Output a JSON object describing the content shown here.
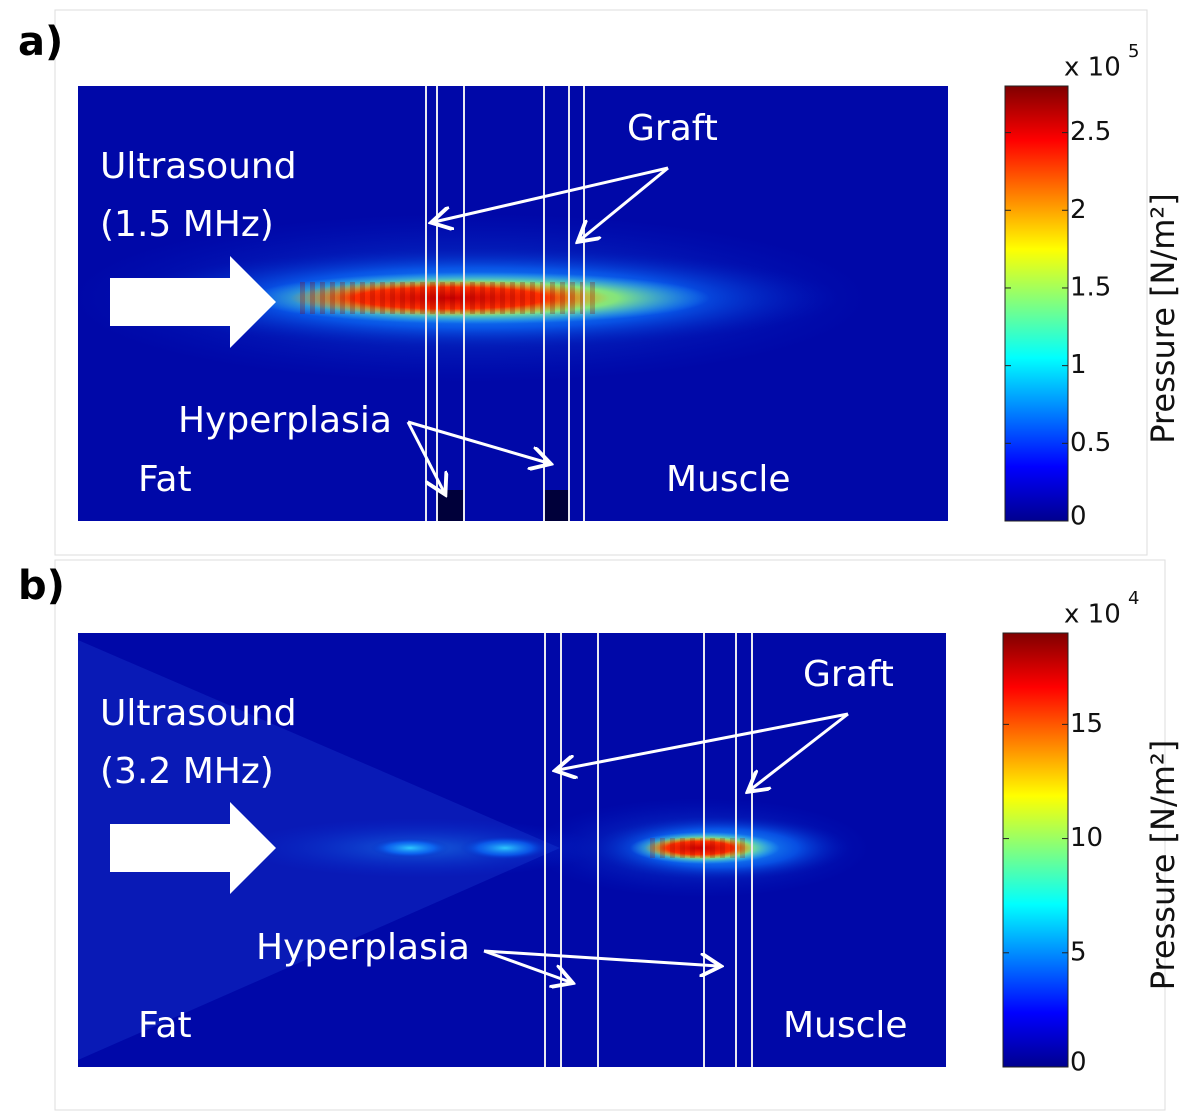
{
  "panels": [
    {
      "label": "a)",
      "annotations": {
        "source": "Ultrasound",
        "frequency": "(1.5 MHz)",
        "graft": "Graft",
        "hyperplasia": "Hyperplasia",
        "left_tissue": "Fat",
        "right_tissue": "Muscle"
      },
      "colorbar": {
        "label": "Pressure [N/m²]",
        "multiplier": "x 10",
        "exponent": "5",
        "lim": [
          0,
          2.8
        ],
        "ticks": [
          0,
          0.5,
          1,
          1.5,
          2,
          2.5
        ]
      }
    },
    {
      "label": "b)",
      "annotations": {
        "source": "Ultrasound",
        "frequency": "(3.2 MHz)",
        "graft": "Graft",
        "hyperplasia": "Hyperplasia",
        "left_tissue": "Fat",
        "right_tissue": "Muscle"
      },
      "colorbar": {
        "label": "Pressure [N/m²]",
        "multiplier": "x 10",
        "exponent": "4",
        "lim": [
          0,
          19
        ],
        "ticks": [
          0,
          5,
          10,
          15
        ]
      }
    }
  ]
}
